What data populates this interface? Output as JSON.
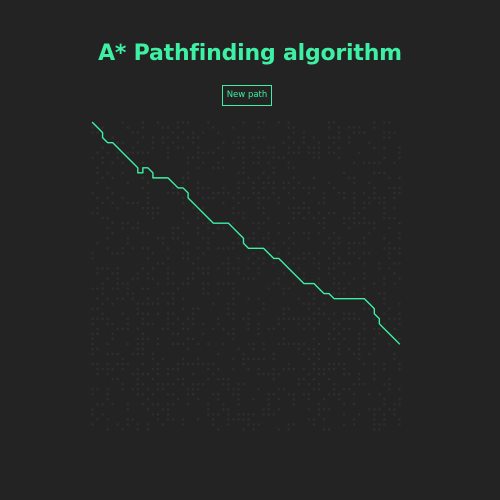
{
  "header": {
    "title": "A* Pathfinding algorithm"
  },
  "controls": {
    "new_path_label": "New path"
  },
  "colors": {
    "background": "#232323",
    "accent": "#3ef0a4",
    "grid_cell": "#2e2e2e"
  },
  "grid": {
    "cols": 62,
    "rows": 62,
    "obstacle_density": 0.32,
    "path_cells": [
      [
        0,
        0
      ],
      [
        1,
        1
      ],
      [
        2,
        2
      ],
      [
        2,
        3
      ],
      [
        3,
        4
      ],
      [
        4,
        4
      ],
      [
        5,
        5
      ],
      [
        6,
        6
      ],
      [
        7,
        7
      ],
      [
        8,
        8
      ],
      [
        9,
        9
      ],
      [
        9,
        10
      ],
      [
        10,
        10
      ],
      [
        10,
        9
      ],
      [
        11,
        9
      ],
      [
        12,
        10
      ],
      [
        12,
        11
      ],
      [
        13,
        11
      ],
      [
        14,
        11
      ],
      [
        15,
        11
      ],
      [
        16,
        12
      ],
      [
        17,
        13
      ],
      [
        18,
        13
      ],
      [
        19,
        14
      ],
      [
        19,
        15
      ],
      [
        20,
        16
      ],
      [
        21,
        17
      ],
      [
        22,
        18
      ],
      [
        23,
        19
      ],
      [
        24,
        20
      ],
      [
        25,
        20
      ],
      [
        26,
        20
      ],
      [
        27,
        20
      ],
      [
        28,
        21
      ],
      [
        29,
        22
      ],
      [
        30,
        23
      ],
      [
        30,
        24
      ],
      [
        31,
        25
      ],
      [
        32,
        25
      ],
      [
        33,
        25
      ],
      [
        34,
        25
      ],
      [
        35,
        26
      ],
      [
        36,
        27
      ],
      [
        37,
        27
      ],
      [
        38,
        28
      ],
      [
        39,
        29
      ],
      [
        40,
        30
      ],
      [
        41,
        31
      ],
      [
        42,
        32
      ],
      [
        43,
        32
      ],
      [
        44,
        32
      ],
      [
        45,
        33
      ],
      [
        46,
        34
      ],
      [
        47,
        34
      ],
      [
        48,
        35
      ],
      [
        49,
        35
      ],
      [
        50,
        35
      ],
      [
        51,
        35
      ],
      [
        52,
        35
      ],
      [
        53,
        35
      ],
      [
        54,
        35
      ],
      [
        55,
        36
      ],
      [
        56,
        37
      ],
      [
        56,
        38
      ],
      [
        57,
        39
      ],
      [
        57,
        40
      ],
      [
        58,
        41
      ],
      [
        59,
        42
      ],
      [
        60,
        43
      ],
      [
        61,
        44
      ]
    ]
  }
}
